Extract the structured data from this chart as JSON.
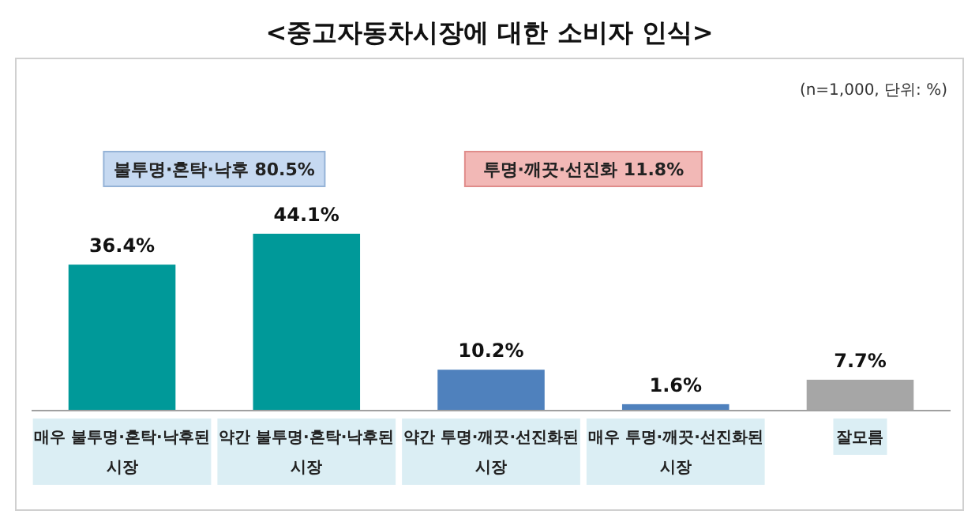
{
  "chart_data": {
    "type": "bar",
    "title": "<중고자동차시장에 대한 소비자 인식>",
    "categories": [
      "매우 불투명·혼탁·낙후된\n시장",
      "약간 불투명·혼탁·낙후된\n시장",
      "약간 투명·깨끗·선진화된\n시장",
      "매우 투명·깨끗·선진화된\n시장",
      "잘모름"
    ],
    "values": [
      36.4,
      44.1,
      10.2,
      1.6,
      7.7
    ],
    "colors": [
      "#009999",
      "#009999",
      "#4f81bd",
      "#4f81bd",
      "#a6a6a6"
    ],
    "value_labels": [
      "36.4%",
      "44.1%",
      "10.2%",
      "1.6%",
      "7.7%"
    ],
    "annotations": [
      "불투명·혼탁·낙후 80.5%",
      "투명·깨끗·선진화 11.8%",
      "(n=1,000,  단위: %)"
    ]
  }
}
